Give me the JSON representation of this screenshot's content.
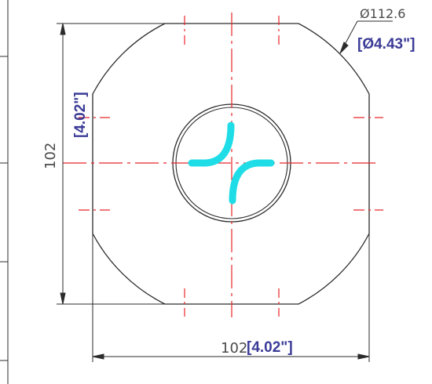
{
  "drawing": {
    "colors": {
      "outline": "#2b2b2b",
      "centerline": "#e8262a",
      "imperial": "#3b3b97",
      "slot": "#1fdde6",
      "dimension": "#4a4a4a"
    },
    "diameter_callout": {
      "metric": "Ø112.6",
      "imperial": "[Ø4.43\"]"
    },
    "height_dimension": {
      "metric": "102",
      "imperial": "[4.02\"]"
    },
    "width_dimension": {
      "metric": "102",
      "imperial": "[4.02\"]"
    }
  }
}
